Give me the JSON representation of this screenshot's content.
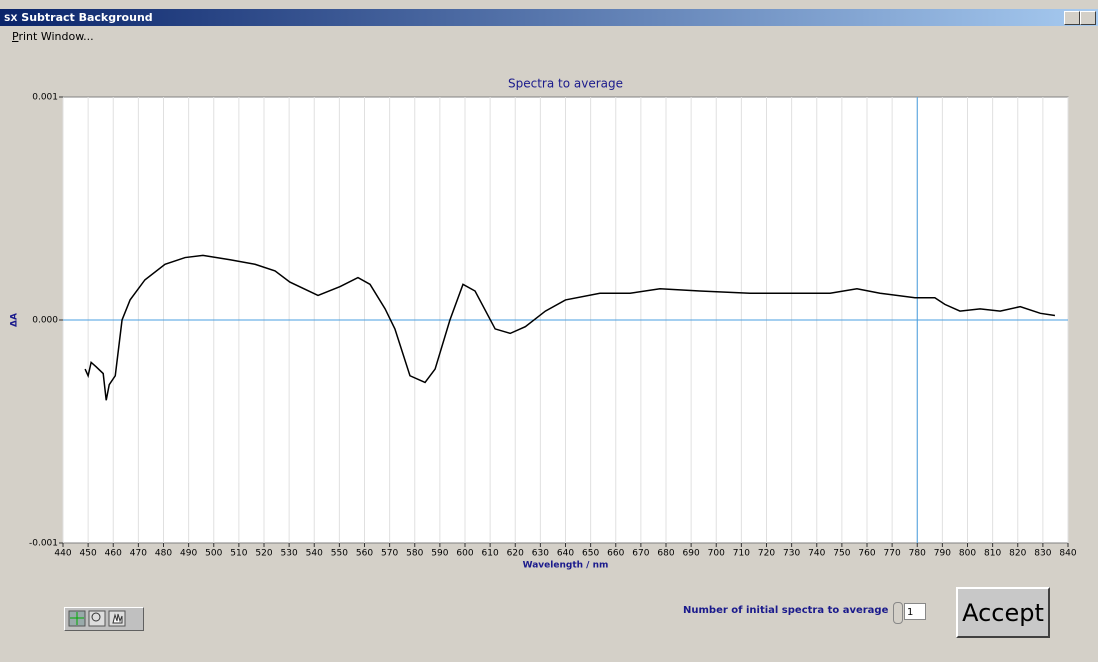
{
  "window": {
    "icon": "SX",
    "title": "Subtract Background"
  },
  "menu": [
    "Print Window..."
  ],
  "chart_data": {
    "type": "line",
    "title": "Spectra to average",
    "x_label": "Wavelength / nm",
    "y_label": "ΔA",
    "x": [
      448.8,
      450,
      451.2,
      453.2,
      456,
      457.2,
      458.4,
      460.8,
      463.5,
      466.7,
      472.6,
      480.6,
      488.6,
      495.7,
      506.5,
      516.4,
      524.4,
      530.3,
      541.5,
      550.3,
      557.4,
      562.2,
      568.2,
      572.1,
      578.1,
      584.1,
      588.1,
      594,
      599.2,
      604,
      612,
      618,
      624,
      632,
      640,
      653.7,
      665.7,
      677.6,
      693.5,
      713.4,
      733.3,
      745.3,
      756,
      765.2,
      779.1,
      787,
      791,
      797,
      805,
      813,
      821,
      829,
      834.8
    ],
    "series": [
      {
        "color": "#000000",
        "values": [
          -0.00022,
          -0.00025,
          -0.00019,
          -0.00021,
          -0.00024,
          -0.00036,
          -0.00029,
          -0.00025,
          0,
          9e-05,
          0.00018,
          0.00025,
          0.00028,
          0.00029,
          0.00027,
          0.00025,
          0.00022,
          0.00017,
          0.00011,
          0.00015,
          0.00019,
          0.00016,
          5e-05,
          -4e-05,
          -0.00025,
          -0.00028,
          -0.00022,
          0,
          0.00016,
          0.00013,
          -4e-05,
          -6e-05,
          -3e-05,
          4e-05,
          9e-05,
          0.00012,
          0.00012,
          0.00014,
          0.00013,
          0.00012,
          0.00012,
          0.00012,
          0.00014,
          0.00012,
          0.0001,
          0.0001,
          7e-05,
          4e-05,
          5e-05,
          4e-05,
          6e-05,
          3e-05,
          2e-05
        ]
      }
    ],
    "xlim": [
      440,
      840
    ],
    "ylim": [
      -0.001,
      0.001
    ],
    "xticks": [
      440,
      450,
      460,
      470,
      480,
      490,
      500,
      510,
      520,
      530,
      540,
      550,
      560,
      570,
      580,
      590,
      600,
      610,
      620,
      630,
      640,
      650,
      660,
      670,
      680,
      690,
      700,
      710,
      720,
      730,
      740,
      750,
      760,
      770,
      780,
      790,
      800,
      810,
      820,
      830,
      840
    ],
    "yticks": [
      0.001,
      {
        "value": 0,
        "label": "0.000"
      },
      -0.001
    ],
    "grid": true,
    "cursor": {
      "x": 780,
      "y": 0,
      "color": "#4a9fe0"
    }
  },
  "controls": {
    "count_label": "Number of initial spectra to average",
    "count_value": 1,
    "accept": "Accept"
  }
}
